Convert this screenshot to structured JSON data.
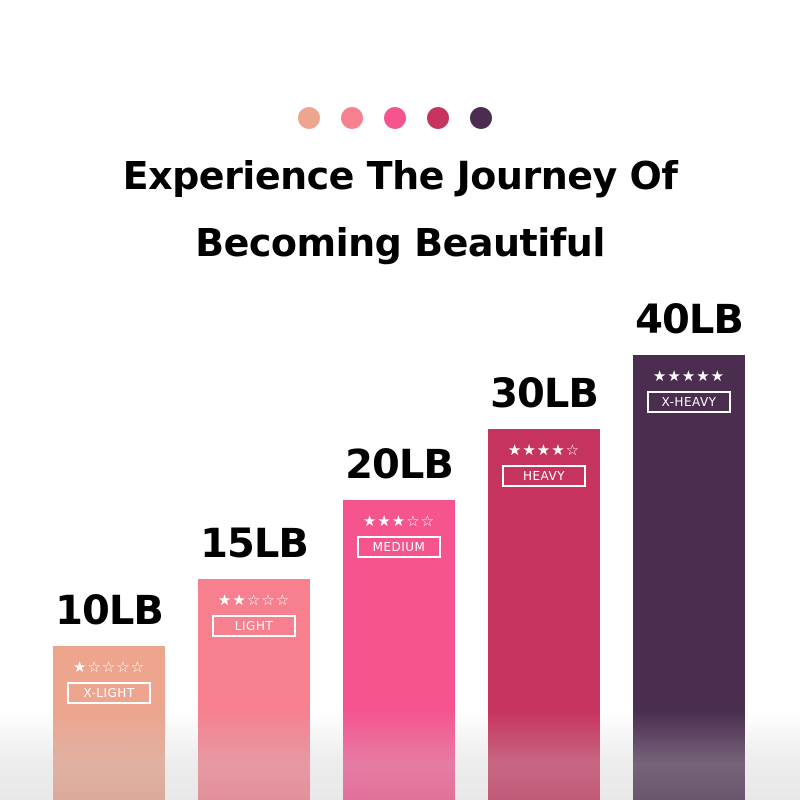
{
  "header": {
    "dot_colors": [
      "#EDA58E",
      "#F7808F",
      "#F5548F",
      "#C7335F",
      "#4A2D4F"
    ],
    "title_line1": "Experience The Journey Of",
    "title_line2": "Becoming Beautiful"
  },
  "chart_data": {
    "type": "bar",
    "categories": [
      "X-LIGHT",
      "LIGHT",
      "MEDIUM",
      "HEAVY",
      "X-HEAVY"
    ],
    "values": [
      10,
      15,
      20,
      30,
      40
    ],
    "value_labels": [
      "10LB",
      "15LB",
      "20LB",
      "30LB",
      "40LB"
    ],
    "stars": [
      1,
      2,
      3,
      4,
      5
    ],
    "max_stars": 5,
    "colors": [
      "#EDA58E",
      "#F7808F",
      "#F5548F",
      "#C7335F",
      "#4A2D4F"
    ]
  }
}
